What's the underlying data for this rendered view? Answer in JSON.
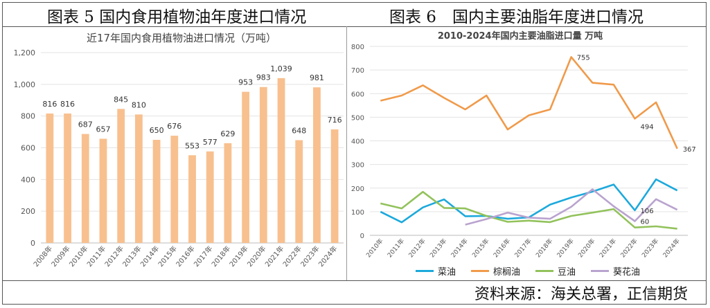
{
  "figure_left_title": "图表 5 国内食用植物油年度进口情况",
  "figure_right_title": "图表 6　国内主要油脂年度进口情况",
  "source": "资料来源：海关总署，正信期货",
  "chart_data": [
    {
      "type": "bar",
      "title": "近17年国内食用植物油进口情况（万吨）",
      "categories": [
        "2008年",
        "2009年",
        "2010年",
        "2011年",
        "2012年",
        "2013年",
        "2014年",
        "2015年",
        "2016年",
        "2017年",
        "2018年",
        "2019年",
        "2020年",
        "2021年",
        "2022年",
        "2023年",
        "2024年"
      ],
      "values": [
        816,
        816,
        687,
        657,
        845,
        810,
        650,
        676,
        553,
        577,
        629,
        953,
        983,
        1039,
        648,
        981,
        716
      ],
      "labels": [
        "816",
        "816",
        "687",
        "657",
        "845",
        "810",
        "650",
        "676",
        "553",
        "577",
        "629",
        "953",
        "983",
        "1,039",
        "648",
        "981",
        "716"
      ],
      "ylim": [
        0,
        1200
      ],
      "yticks": [
        "0",
        "200",
        "400",
        "600",
        "800",
        "1,000",
        "1,200"
      ],
      "color": "#F8C08F",
      "grid": true
    },
    {
      "type": "line",
      "title": "2010-2024年国内主要油脂进口量  万吨",
      "categories": [
        "2010年",
        "2011年",
        "2012年",
        "2013年",
        "2014年",
        "2015年",
        "2016年",
        "2017年",
        "2018年",
        "2019年",
        "2020年",
        "2021年",
        "2022年",
        "2023年",
        "2024年"
      ],
      "ylim": [
        0,
        800
      ],
      "yticks": [
        "0",
        "100",
        "200",
        "300",
        "400",
        "500",
        "600",
        "700",
        "800"
      ],
      "grid": true,
      "legend_position": "bottom",
      "series": [
        {
          "name": "菜油",
          "color": "#1CA9DC",
          "values": [
            100,
            55,
            118,
            152,
            81,
            82,
            70,
            76,
            130,
            160,
            185,
            215,
            106,
            237,
            190
          ]
        },
        {
          "name": "棕榈油",
          "color": "#F09A4A",
          "values": [
            570,
            592,
            635,
            582,
            533,
            592,
            448,
            508,
            533,
            755,
            646,
            638,
            494,
            563,
            367
          ]
        },
        {
          "name": "豆油",
          "color": "#92C25B",
          "values": [
            135,
            114,
            184,
            116,
            114,
            82,
            57,
            62,
            56,
            82,
            96,
            111,
            33,
            38,
            28
          ]
        },
        {
          "name": "葵花油",
          "color": "#B9A3CF",
          "values": [
            null,
            null,
            null,
            null,
            45,
            69,
            96,
            75,
            70,
            121,
            195,
            123,
            60,
            153,
            108
          ]
        }
      ],
      "point_labels": [
        {
          "series": 1,
          "index": 9,
          "text": "755"
        },
        {
          "series": 1,
          "index": 12,
          "text": "494"
        },
        {
          "series": 1,
          "index": 14,
          "text": "367"
        },
        {
          "series": 0,
          "index": 12,
          "text": "106"
        },
        {
          "series": 3,
          "index": 12,
          "text": "60"
        }
      ]
    }
  ]
}
